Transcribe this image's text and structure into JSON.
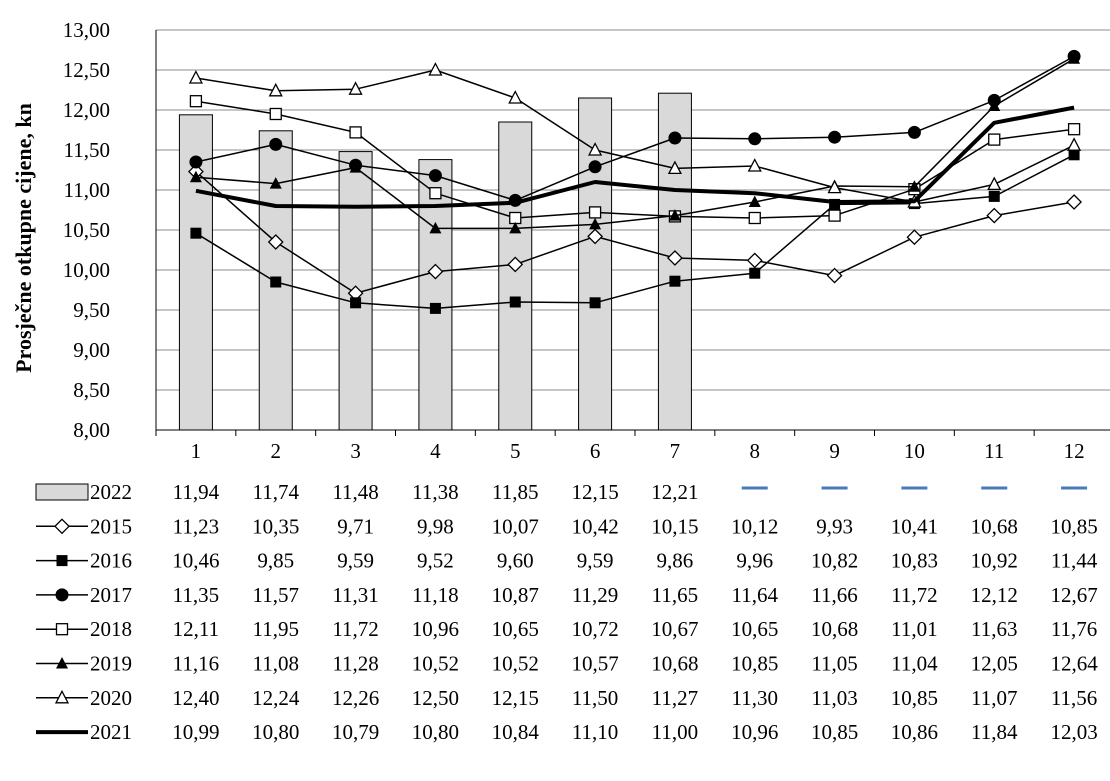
{
  "chart_data": {
    "type": "line",
    "ylabel": "Prosječne otkupne cijene, kn",
    "ylim": [
      8.0,
      13.0
    ],
    "y_ticks": [
      "8,00",
      "8,50",
      "9,00",
      "9,50",
      "10,00",
      "10,50",
      "11,00",
      "11,50",
      "12,00",
      "12,50",
      "13,00"
    ],
    "categories": [
      "1",
      "2",
      "3",
      "4",
      "5",
      "6",
      "7",
      "8",
      "9",
      "10",
      "11",
      "12"
    ],
    "grid": "horizontal",
    "legend_placement": "data table below plot",
    "bar_series": {
      "name": "2022",
      "values": [
        11.94,
        11.74,
        11.48,
        11.38,
        11.85,
        12.15,
        12.21,
        null,
        null,
        null,
        null,
        null
      ],
      "labels": [
        "11,94",
        "11,74",
        "11,48",
        "11,38",
        "11,85",
        "12,15",
        "12,21",
        "—",
        "—",
        "—",
        "—",
        "—"
      ],
      "color": "#d9d9d9"
    },
    "series": [
      {
        "name": "2015",
        "marker": "diamond-open",
        "values": [
          11.23,
          10.35,
          9.71,
          9.98,
          10.07,
          10.42,
          10.15,
          10.12,
          9.93,
          10.41,
          10.68,
          10.85
        ],
        "labels": [
          "11,23",
          "10,35",
          "9,71",
          "9,98",
          "10,07",
          "10,42",
          "10,15",
          "10,12",
          "9,93",
          "10,41",
          "10,68",
          "10,85"
        ]
      },
      {
        "name": "2016",
        "marker": "square-filled",
        "values": [
          10.46,
          9.85,
          9.59,
          9.52,
          9.6,
          9.59,
          9.86,
          9.96,
          10.82,
          10.83,
          10.92,
          11.44
        ],
        "labels": [
          "10,46",
          "9,85",
          "9,59",
          "9,52",
          "9,60",
          "9,59",
          "9,86",
          "9,96",
          "10,82",
          "10,83",
          "10,92",
          "11,44"
        ]
      },
      {
        "name": "2017",
        "marker": "circle-filled",
        "values": [
          11.35,
          11.57,
          11.31,
          11.18,
          10.87,
          11.29,
          11.65,
          11.64,
          11.66,
          11.72,
          12.12,
          12.67
        ],
        "labels": [
          "11,35",
          "11,57",
          "11,31",
          "11,18",
          "10,87",
          "11,29",
          "11,65",
          "11,64",
          "11,66",
          "11,72",
          "12,12",
          "12,67"
        ]
      },
      {
        "name": "2018",
        "marker": "square-open",
        "values": [
          12.11,
          11.95,
          11.72,
          10.96,
          10.65,
          10.72,
          10.67,
          10.65,
          10.68,
          11.01,
          11.63,
          11.76
        ],
        "labels": [
          "12,11",
          "11,95",
          "11,72",
          "10,96",
          "10,65",
          "10,72",
          "10,67",
          "10,65",
          "10,68",
          "11,01",
          "11,63",
          "11,76"
        ]
      },
      {
        "name": "2019",
        "marker": "triangle-filled",
        "values": [
          11.16,
          11.08,
          11.28,
          10.52,
          10.52,
          10.57,
          10.68,
          10.85,
          11.05,
          11.04,
          12.05,
          12.64
        ],
        "labels": [
          "11,16",
          "11,08",
          "11,28",
          "10,52",
          "10,52",
          "10,57",
          "10,68",
          "10,85",
          "11,05",
          "11,04",
          "12,05",
          "12,64"
        ]
      },
      {
        "name": "2020",
        "marker": "triangle-open",
        "values": [
          12.4,
          12.24,
          12.26,
          12.5,
          12.15,
          11.5,
          11.27,
          11.3,
          11.03,
          10.85,
          11.07,
          11.56
        ],
        "labels": [
          "12,40",
          "12,24",
          "12,26",
          "12,50",
          "12,15",
          "11,50",
          "11,27",
          "11,30",
          "11,03",
          "10,85",
          "11,07",
          "11,56"
        ]
      },
      {
        "name": "2021",
        "marker": "none-thick",
        "values": [
          10.99,
          10.8,
          10.79,
          10.8,
          10.84,
          11.1,
          11.0,
          10.96,
          10.85,
          10.86,
          11.84,
          12.03
        ],
        "labels": [
          "10,99",
          "10,80",
          "10,79",
          "10,80",
          "10,84",
          "11,10",
          "11,00",
          "10,96",
          "10,85",
          "10,86",
          "11,84",
          "12,03"
        ]
      }
    ],
    "colors": {
      "line": "#000000",
      "grid": "#8c8c8c",
      "missing_dash": "#4a7ab8"
    }
  }
}
